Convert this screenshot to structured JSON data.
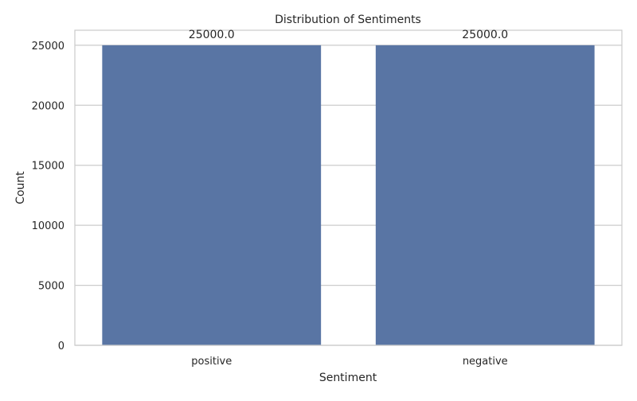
{
  "chart_data": {
    "type": "bar",
    "title": "Distribution of Sentiments",
    "xlabel": "Sentiment",
    "ylabel": "Count",
    "categories": [
      "positive",
      "negative"
    ],
    "values": [
      25000,
      25000
    ],
    "data_labels": [
      "25000.0",
      "25000.0"
    ],
    "yticks": [
      0,
      5000,
      10000,
      15000,
      20000,
      25000
    ],
    "ylim": [
      0,
      26250
    ],
    "grid": "horizontal",
    "colors": {
      "bar": "#5975a4",
      "grid": "#cccccc",
      "frame": "#cccccc",
      "background": "#ffffff"
    }
  }
}
